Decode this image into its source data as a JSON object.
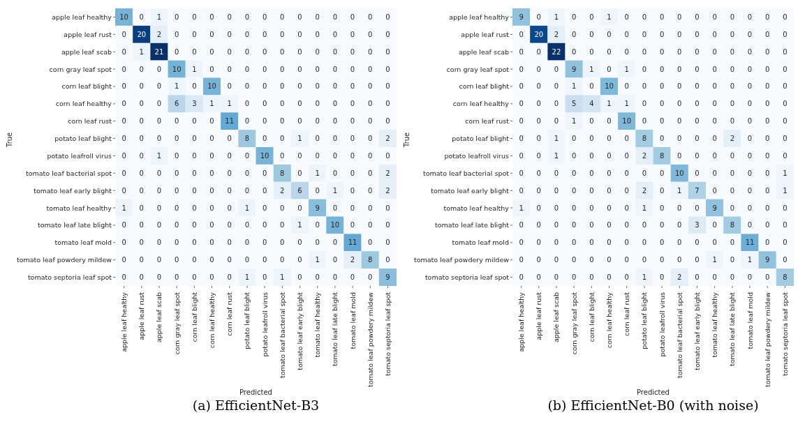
{
  "chart_data": [
    {
      "type": "heatmap",
      "title": "(a) EfficientNet-B3",
      "xlabel": "Predicted",
      "ylabel": "True",
      "data_labels": true,
      "categories": [
        "apple leaf healthy",
        "apple leaf rust",
        "apple leaf scab",
        "corn gray leaf spot",
        "corn leaf blight",
        "corn leaf healthy",
        "corn leaf rust",
        "potato leaf blight",
        "potato leafroll virus",
        "tomato leaf bacterial spot",
        "tomato leaf early blight",
        "tomato leaf healthy",
        "tomato leaf late blight",
        "tomato leaf mold",
        "tomato leaf powdery mildew",
        "tomato septoria leaf spot"
      ],
      "y_categories": [
        "apple leaf healthy",
        "apple leaf rust",
        "apple leaf scab",
        "corn gray leaf spot",
        "corn leaf blight",
        "corn leaf healthy",
        "corn leaf rust",
        "potato leaf blight",
        "potato leafroll virus",
        "tomato leaf bacterial spot",
        "tomato leaf early blight",
        "tomato leaf healthy",
        "tomato leaf late blight",
        "tomato leaf mold",
        "tomato leaf powdery mildew",
        "tomato septoria leaf spot"
      ],
      "cells": [
        [
          10,
          0,
          1,
          0,
          0,
          0,
          0,
          0,
          0,
          0,
          0,
          0,
          0,
          0,
          0,
          0
        ],
        [
          0,
          20,
          2,
          0,
          0,
          0,
          0,
          0,
          0,
          0,
          0,
          0,
          0,
          0,
          0,
          0
        ],
        [
          0,
          1,
          21,
          0,
          0,
          0,
          0,
          0,
          0,
          0,
          0,
          0,
          0,
          0,
          0,
          0
        ],
        [
          0,
          0,
          0,
          10,
          1,
          0,
          0,
          0,
          0,
          0,
          0,
          0,
          0,
          0,
          0,
          0
        ],
        [
          0,
          0,
          0,
          1,
          0,
          10,
          0,
          0,
          0,
          0,
          0,
          0,
          0,
          0,
          0,
          0
        ],
        [
          0,
          0,
          0,
          6,
          3,
          1,
          1,
          0,
          0,
          0,
          0,
          0,
          0,
          0,
          0,
          0
        ],
        [
          0,
          0,
          0,
          0,
          0,
          0,
          11,
          0,
          0,
          0,
          0,
          0,
          0,
          0,
          0,
          0
        ],
        [
          0,
          0,
          0,
          0,
          0,
          0,
          0,
          8,
          0,
          0,
          1,
          0,
          0,
          0,
          0,
          2
        ],
        [
          0,
          0,
          1,
          0,
          0,
          0,
          0,
          0,
          10,
          0,
          0,
          0,
          0,
          0,
          0,
          0
        ],
        [
          0,
          0,
          0,
          0,
          0,
          0,
          0,
          0,
          0,
          8,
          0,
          1,
          0,
          0,
          0,
          2
        ],
        [
          0,
          0,
          0,
          0,
          0,
          0,
          0,
          0,
          0,
          2,
          6,
          0,
          1,
          0,
          0,
          2
        ],
        [
          1,
          0,
          0,
          0,
          0,
          0,
          0,
          1,
          0,
          0,
          0,
          9,
          0,
          0,
          0,
          0
        ],
        [
          0,
          0,
          0,
          0,
          0,
          0,
          0,
          0,
          0,
          0,
          1,
          0,
          10,
          0,
          0,
          0
        ],
        [
          0,
          0,
          0,
          0,
          0,
          0,
          0,
          0,
          0,
          0,
          0,
          0,
          0,
          11,
          0,
          0
        ],
        [
          0,
          0,
          0,
          0,
          0,
          0,
          0,
          0,
          0,
          0,
          0,
          1,
          0,
          2,
          8,
          0
        ],
        [
          0,
          0,
          0,
          0,
          0,
          0,
          0,
          1,
          0,
          1,
          0,
          0,
          0,
          0,
          0,
          9
        ]
      ]
    },
    {
      "type": "heatmap",
      "title": "(b) EfficientNet-B0 (with noise)",
      "xlabel": "Predicted",
      "ylabel": "True",
      "data_labels": true,
      "categories": [
        "apple leaf healthy",
        "apple leaf rust",
        "apple leaf scab",
        "corn gray leaf spot",
        "corn leaf blight",
        "corn leaf healthy",
        "corn leaf rust",
        "potato leaf blight",
        "potato leafroll virus",
        "tomato leaf bacterial spot",
        "tomato leaf early blight",
        "tomato leaf healthy",
        "tomato leaf late blight",
        "tomato leaf mold",
        "tomato leaf powdery mildew",
        "tomato septoria leaf spot"
      ],
      "y_categories": [
        "apple leaf healthy",
        "apple leaf rust",
        "apple leaf scab",
        "corn gray leaf spot",
        "corn leaf blight",
        "corn leaf healthy",
        "corn leaf rust",
        "potato leaf blight",
        "potato leafroll virus",
        "tomato leaf bacterial spot",
        "tomato leaf early blight",
        "tomato leaf healthy",
        "tomato leaf late blight",
        "tomato leaf mold",
        "tomato leaf powdery mildew",
        "tomato septoria leaf spot"
      ],
      "cells": [
        [
          9,
          0,
          1,
          0,
          0,
          1,
          0,
          0,
          0,
          0,
          0,
          0,
          0,
          0,
          0,
          0
        ],
        [
          0,
          20,
          2,
          0,
          0,
          0,
          0,
          0,
          0,
          0,
          0,
          0,
          0,
          0,
          0,
          0
        ],
        [
          0,
          0,
          22,
          0,
          0,
          0,
          0,
          0,
          0,
          0,
          0,
          0,
          0,
          0,
          0,
          0
        ],
        [
          0,
          0,
          0,
          9,
          1,
          0,
          1,
          0,
          0,
          0,
          0,
          0,
          0,
          0,
          0,
          0
        ],
        [
          0,
          0,
          0,
          1,
          0,
          10,
          0,
          0,
          0,
          0,
          0,
          0,
          0,
          0,
          0,
          0
        ],
        [
          0,
          0,
          0,
          5,
          4,
          1,
          1,
          0,
          0,
          0,
          0,
          0,
          0,
          0,
          0,
          0
        ],
        [
          0,
          0,
          0,
          1,
          0,
          0,
          10,
          0,
          0,
          0,
          0,
          0,
          0,
          0,
          0,
          0
        ],
        [
          0,
          0,
          1,
          0,
          0,
          0,
          0,
          8,
          0,
          0,
          0,
          0,
          2,
          0,
          0,
          0
        ],
        [
          0,
          0,
          1,
          0,
          0,
          0,
          0,
          2,
          8,
          0,
          0,
          0,
          0,
          0,
          0,
          0
        ],
        [
          0,
          0,
          0,
          0,
          0,
          0,
          0,
          0,
          0,
          10,
          0,
          0,
          0,
          0,
          0,
          1
        ],
        [
          0,
          0,
          0,
          0,
          0,
          0,
          0,
          2,
          0,
          1,
          7,
          0,
          0,
          0,
          0,
          1
        ],
        [
          1,
          0,
          0,
          0,
          0,
          0,
          0,
          1,
          0,
          0,
          0,
          9,
          0,
          0,
          0,
          0
        ],
        [
          0,
          0,
          0,
          0,
          0,
          0,
          0,
          0,
          0,
          0,
          3,
          0,
          8,
          0,
          0,
          0
        ],
        [
          0,
          0,
          0,
          0,
          0,
          0,
          0,
          0,
          0,
          0,
          0,
          0,
          0,
          11,
          0,
          0
        ],
        [
          0,
          0,
          0,
          0,
          0,
          0,
          0,
          0,
          0,
          0,
          0,
          1,
          0,
          1,
          9,
          0
        ],
        [
          0,
          0,
          0,
          0,
          0,
          0,
          0,
          1,
          0,
          2,
          0,
          0,
          0,
          0,
          0,
          8
        ]
      ]
    }
  ]
}
